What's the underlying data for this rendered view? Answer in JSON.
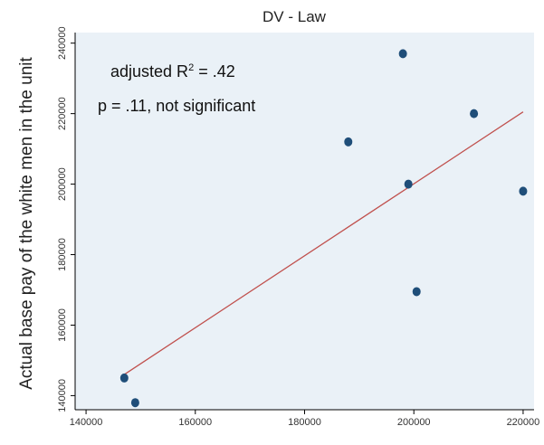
{
  "chart_data": {
    "type": "scatter",
    "title": "DV - Law",
    "xlabel": "",
    "ylabel": "Actual base pay of the white men in the unit",
    "xlim": [
      138000,
      222000
    ],
    "ylim": [
      136000,
      243000
    ],
    "x_ticks": [
      140000,
      160000,
      180000,
      200000,
      220000
    ],
    "x_tick_labels": [
      "140000",
      "160000",
      "180000",
      "200000",
      "220000"
    ],
    "y_ticks": [
      140000,
      160000,
      180000,
      200000,
      220000,
      240000
    ],
    "y_tick_labels": [
      "140000",
      "160000",
      "180000",
      "200000",
      "220000",
      "240000"
    ],
    "grid": false,
    "points": [
      {
        "x": 147000,
        "y": 145000
      },
      {
        "x": 149000,
        "y": 138000
      },
      {
        "x": 188000,
        "y": 212000
      },
      {
        "x": 198000,
        "y": 237000
      },
      {
        "x": 199000,
        "y": 200000
      },
      {
        "x": 200500,
        "y": 169500
      },
      {
        "x": 211000,
        "y": 220000
      },
      {
        "x": 220000,
        "y": 198000
      }
    ],
    "fit_line": {
      "x": [
        147000,
        220000
      ],
      "y": [
        146000,
        220500
      ]
    },
    "annotations": {
      "r2_prefix": "adjusted R",
      "r2_superscript": "2",
      "r2_suffix": " = .42",
      "p_value": "p = .11, not significant"
    },
    "colors": {
      "background": "#ffffff",
      "plot_region": "#eaf1f7",
      "points": "#1f4e79",
      "fit_line": "#c0504d",
      "axis": "#000000"
    }
  }
}
